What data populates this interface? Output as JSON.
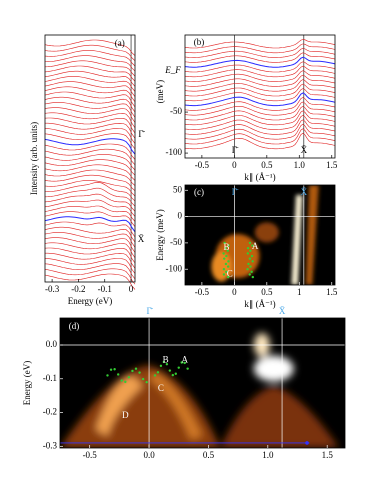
{
  "chart_data": [
    {
      "type": "edc",
      "panel_label": "(a)",
      "xlabel": "Energy (eV)",
      "ylabel": "Intensity (arb. units)",
      "xlim": [
        -0.327,
        0.015
      ],
      "xticks": [
        -0.3,
        -0.2,
        -0.1,
        0
      ],
      "markers": [
        "Γ̄",
        "X̄"
      ]
    },
    {
      "type": "mdc",
      "panel_label": "(b)",
      "ylabel": "(meV)",
      "level_label": "E_F",
      "xlabel": "k∥ (Å⁻¹)",
      "xlim": [
        -0.76,
        1.55
      ],
      "xticks": [
        -0.5,
        0,
        0.5,
        {
          "value": 1,
          "label": "1.0"
        },
        1.5
      ],
      "ylim": [
        -106,
        44
      ],
      "yticks": [
        -100,
        -50
      ],
      "markers": [
        "Γ̄",
        "X̄"
      ]
    },
    {
      "type": "image",
      "panel_label": "(c)",
      "ylabel": "Energy (meV)",
      "xlabel": "k∥ (Å⁻¹)",
      "xlim": [
        -0.76,
        1.55
      ],
      "xticks": [
        -0.5,
        0,
        0.5,
        1,
        1.5
      ],
      "ylim": [
        -130,
        60
      ],
      "yticks": [
        50,
        0,
        -50,
        -100
      ],
      "markers": [
        "Γ̄",
        "X̄"
      ],
      "annotations": [
        "B",
        "A",
        "C"
      ]
    },
    {
      "type": "image",
      "panel_label": "(d)",
      "ylabel": "Energy (eV)",
      "xlim": [
        -0.75,
        1.65
      ],
      "xticks": [
        -0.5,
        {
          "value": 0,
          "label": "0.0"
        },
        0.5,
        {
          "value": 1,
          "label": "1.0"
        },
        1.5
      ],
      "ylim": [
        -0.305,
        0.08
      ],
      "yticks": [
        {
          "value": 0,
          "label": "0.0"
        },
        -0.1,
        -0.2,
        -0.3
      ],
      "markers": [
        "Γ̄",
        "X̄"
      ],
      "annotations": [
        "B",
        "A",
        "C",
        "D"
      ]
    }
  ]
}
